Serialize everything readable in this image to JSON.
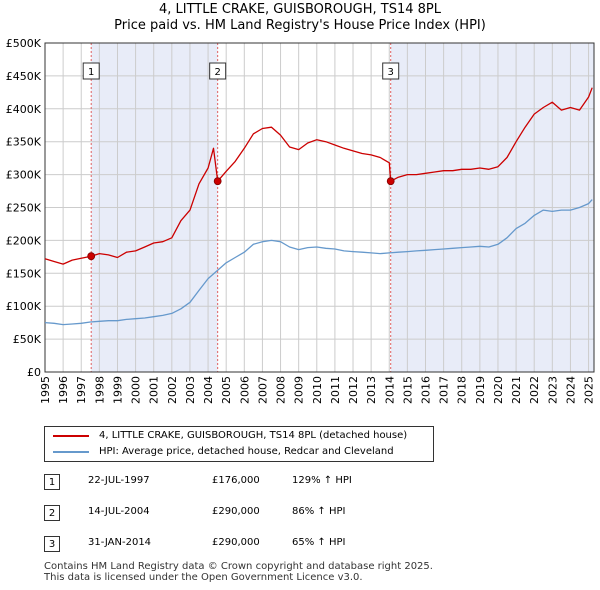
{
  "header": {
    "title": "4, LITTLE CRAKE, GUISBOROUGH, TS14 8PL",
    "subtitle": "Price paid vs. HM Land Registry's House Price Index (HPI)"
  },
  "colors": {
    "property_line": "#cc0000",
    "hpi_line": "#6699cc",
    "shade": "#e8ecf8",
    "grid": "#cccccc",
    "marker_line": "#e06060"
  },
  "chart_data": {
    "type": "line",
    "title": "4, LITTLE CRAKE, GUISBOROUGH, TS14 8PL",
    "subtitle": "Price paid vs. HM Land Registry's House Price Index (HPI)",
    "xlabel": "",
    "ylabel": "",
    "xlim": [
      1995.0,
      2025.3
    ],
    "ylim": [
      0,
      500000
    ],
    "grid": true,
    "y_ticks": [
      0,
      50000,
      100000,
      150000,
      200000,
      250000,
      300000,
      350000,
      400000,
      450000,
      500000
    ],
    "y_tick_labels": [
      "£0",
      "£50K",
      "£100K",
      "£150K",
      "£200K",
      "£250K",
      "£300K",
      "£350K",
      "£400K",
      "£450K",
      "£500K"
    ],
    "x_ticks": [
      1995,
      1996,
      1997,
      1998,
      1999,
      2000,
      2001,
      2002,
      2003,
      2004,
      2005,
      2006,
      2007,
      2008,
      2009,
      2010,
      2011,
      2012,
      2013,
      2014,
      2015,
      2016,
      2017,
      2018,
      2019,
      2020,
      2021,
      2022,
      2023,
      2024,
      2025
    ],
    "x_tick_labels": [
      "1995",
      "1996",
      "1997",
      "1998",
      "1999",
      "2000",
      "2001",
      "2002",
      "2003",
      "2004",
      "2005",
      "2006",
      "2007",
      "2008",
      "2009",
      "2010",
      "2011",
      "2012",
      "2013",
      "2014",
      "2015",
      "2016",
      "2017",
      "2018",
      "2019",
      "2020",
      "2021",
      "2022",
      "2023",
      "2024",
      "2025"
    ],
    "shaded_ranges": [
      [
        1997.55,
        2004.53
      ],
      [
        2014.08,
        2025.3
      ]
    ],
    "series": [
      {
        "name": "4, LITTLE CRAKE, GUISBOROUGH, TS14 8PL (detached house)",
        "color": "#cc0000",
        "x": [
          1995.0,
          1995.5,
          1996.0,
          1996.5,
          1997.0,
          1997.55,
          1998.0,
          1998.5,
          1999.0,
          1999.5,
          2000.0,
          2000.5,
          2001.0,
          2001.5,
          2002.0,
          2002.5,
          2003.0,
          2003.5,
          2004.0,
          2004.3,
          2004.53,
          2005.0,
          2005.5,
          2006.0,
          2006.5,
          2007.0,
          2007.5,
          2008.0,
          2008.5,
          2009.0,
          2009.5,
          2010.0,
          2010.5,
          2011.0,
          2011.5,
          2012.0,
          2012.5,
          2013.0,
          2013.5,
          2014.0,
          2014.08,
          2014.5,
          2015.0,
          2015.5,
          2016.0,
          2016.5,
          2017.0,
          2017.5,
          2018.0,
          2018.5,
          2019.0,
          2019.5,
          2020.0,
          2020.5,
          2021.0,
          2021.5,
          2022.0,
          2022.5,
          2023.0,
          2023.5,
          2024.0,
          2024.5,
          2025.0,
          2025.2
        ],
        "values": [
          172000,
          168000,
          164000,
          170000,
          173000,
          176000,
          180000,
          178000,
          174000,
          182000,
          184000,
          190000,
          196000,
          198000,
          204000,
          230000,
          246000,
          286000,
          310000,
          340000,
          290000,
          305000,
          320000,
          340000,
          362000,
          370000,
          372000,
          360000,
          342000,
          338000,
          348000,
          353000,
          350000,
          345000,
          340000,
          336000,
          332000,
          330000,
          326000,
          318000,
          290000,
          296000,
          300000,
          300000,
          302000,
          304000,
          306000,
          306000,
          308000,
          308000,
          310000,
          308000,
          312000,
          326000,
          350000,
          372000,
          392000,
          402000,
          410000,
          398000,
          402000,
          398000,
          418000,
          432000
        ]
      },
      {
        "name": "HPI: Average price, detached house, Redcar and Cleveland",
        "color": "#6699cc",
        "x": [
          1995.0,
          1995.5,
          1996.0,
          1996.5,
          1997.0,
          1997.5,
          1998.0,
          1998.5,
          1999.0,
          1999.5,
          2000.0,
          2000.5,
          2001.0,
          2001.5,
          2002.0,
          2002.5,
          2003.0,
          2003.5,
          2004.0,
          2004.5,
          2005.0,
          2005.5,
          2006.0,
          2006.5,
          2007.0,
          2007.5,
          2008.0,
          2008.5,
          2009.0,
          2009.5,
          2010.0,
          2010.5,
          2011.0,
          2011.5,
          2012.0,
          2012.5,
          2013.0,
          2013.5,
          2014.0,
          2014.5,
          2015.0,
          2015.5,
          2016.0,
          2016.5,
          2017.0,
          2017.5,
          2018.0,
          2018.5,
          2019.0,
          2019.5,
          2020.0,
          2020.5,
          2021.0,
          2021.5,
          2022.0,
          2022.5,
          2023.0,
          2023.5,
          2024.0,
          2024.5,
          2025.0,
          2025.2
        ],
        "values": [
          75000,
          74000,
          72000,
          73000,
          74000,
          76000,
          77000,
          78000,
          78000,
          80000,
          81000,
          82000,
          84000,
          86000,
          89000,
          96000,
          106000,
          124000,
          142000,
          154000,
          166000,
          174000,
          182000,
          194000,
          198000,
          200000,
          198000,
          190000,
          186000,
          189000,
          190000,
          188000,
          187000,
          184000,
          183000,
          182000,
          181000,
          180000,
          181000,
          182000,
          183000,
          184000,
          185000,
          186000,
          187000,
          188000,
          189000,
          190000,
          191000,
          190000,
          194000,
          204000,
          218000,
          226000,
          238000,
          246000,
          244000,
          246000,
          246000,
          250000,
          256000,
          262000
        ]
      }
    ],
    "sale_markers": [
      {
        "label": "1",
        "x": 1997.55,
        "value": 176000
      },
      {
        "label": "2",
        "x": 2004.53,
        "value": 290000
      },
      {
        "label": "3",
        "x": 2014.08,
        "value": 290000
      }
    ]
  },
  "legend": {
    "items": [
      {
        "label": "4, LITTLE CRAKE, GUISBOROUGH, TS14 8PL (detached house)",
        "color": "#cc0000"
      },
      {
        "label": "HPI: Average price, detached house, Redcar and Cleveland",
        "color": "#6699cc"
      }
    ]
  },
  "sales": [
    {
      "num": "1",
      "date": "22-JUL-1997",
      "price": "£176,000",
      "hpi": "129% ↑ HPI"
    },
    {
      "num": "2",
      "date": "14-JUL-2004",
      "price": "£290,000",
      "hpi": "86% ↑ HPI"
    },
    {
      "num": "3",
      "date": "31-JAN-2014",
      "price": "£290,000",
      "hpi": "65% ↑ HPI"
    }
  ],
  "footer": {
    "line1": "Contains HM Land Registry data © Crown copyright and database right 2025.",
    "line2": "This data is licensed under the Open Government Licence v3.0."
  }
}
